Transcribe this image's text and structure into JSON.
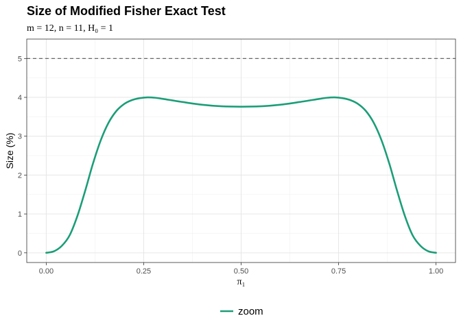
{
  "chart_data": {
    "type": "line",
    "title": "Size of Modified Fisher Exact Test",
    "subtitle": "m = 12,  n = 11,  H₀ = 1",
    "xlabel": "π₁",
    "ylabel": "Size (%)",
    "xlim": [
      -0.05,
      1.05
    ],
    "ylim": [
      -0.25,
      5.5
    ],
    "xticks": [
      0.0,
      0.25,
      0.5,
      0.75,
      1.0
    ],
    "xtick_labels": [
      "0.00",
      "0.25",
      "0.50",
      "0.75",
      "1.00"
    ],
    "yticks": [
      0,
      1,
      2,
      3,
      4,
      5
    ],
    "ytick_labels": [
      "0",
      "1",
      "2",
      "3",
      "4",
      "5"
    ],
    "grid": true,
    "reference_line": {
      "y": 5,
      "style": "dashed",
      "color": "#666666"
    },
    "legend_position": "bottom",
    "series": [
      {
        "name": "zoom",
        "color": "#1b9e77",
        "x": [
          0.0,
          0.02,
          0.04,
          0.06,
          0.08,
          0.1,
          0.12,
          0.14,
          0.16,
          0.18,
          0.2,
          0.22,
          0.24,
          0.26,
          0.28,
          0.3,
          0.35,
          0.4,
          0.45,
          0.5,
          0.55,
          0.6,
          0.65,
          0.7,
          0.72,
          0.74,
          0.76,
          0.78,
          0.8,
          0.82,
          0.84,
          0.86,
          0.88,
          0.9,
          0.92,
          0.94,
          0.96,
          0.98,
          1.0
        ],
        "y": [
          0.0,
          0.04,
          0.18,
          0.45,
          0.95,
          1.6,
          2.3,
          2.9,
          3.35,
          3.65,
          3.83,
          3.93,
          3.98,
          4.0,
          3.99,
          3.96,
          3.88,
          3.81,
          3.77,
          3.76,
          3.77,
          3.81,
          3.88,
          3.96,
          3.99,
          4.0,
          3.98,
          3.93,
          3.83,
          3.65,
          3.35,
          2.9,
          2.3,
          1.6,
          0.95,
          0.45,
          0.18,
          0.04,
          0.0
        ]
      }
    ]
  }
}
